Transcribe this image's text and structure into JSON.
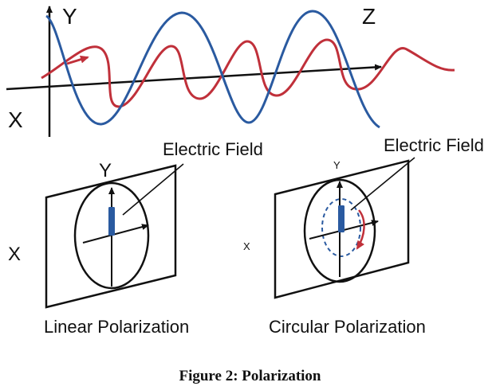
{
  "colors": {
    "line": "#111111",
    "field_blue": "#2a5aa0",
    "field_red": "#c0303a"
  },
  "wave": {
    "axis_y_label": "Y",
    "axis_z_label": "Z",
    "axis_x_label": "X"
  },
  "linear": {
    "axis_y_label": "Y",
    "axis_x_label": "X",
    "field_label": "Electric Field",
    "title": "Linear Polarization"
  },
  "circular": {
    "axis_y_label": "Y",
    "axis_x_label": "X",
    "field_label": "Electric Field",
    "title": "Circular Polarization"
  },
  "caption": "Figure 2: Polarization"
}
